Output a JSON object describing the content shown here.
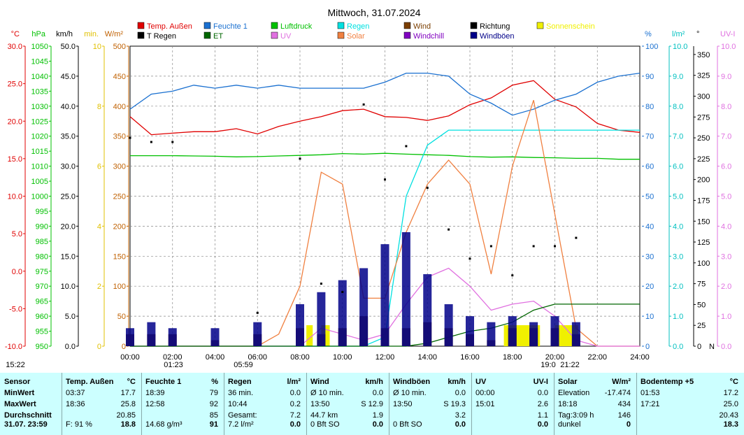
{
  "title": "Mittwoch, 31.07.2024",
  "colors": {
    "temp": "#e00000",
    "feuchte": "#1a70d0",
    "luftdruck": "#00c000",
    "regen": "#00e0e0",
    "wind": "#7a3e00",
    "richtung": "#000000",
    "sonnenschein": "#f0f000",
    "tregen": "#000000",
    "et": "#006600",
    "uv": "#e070e0",
    "solar": "#f08040",
    "windchill": "#8000c0",
    "windboeen": "#000088"
  },
  "legend": [
    {
      "label": "Temp. Außen",
      "color": "#e00000"
    },
    {
      "label": "Feuchte 1",
      "color": "#1a70d0"
    },
    {
      "label": "Luftdruck",
      "color": "#00c000"
    },
    {
      "label": "Regen",
      "color": "#00e0e0"
    },
    {
      "label": "Wind",
      "color": "#7a3e00"
    },
    {
      "label": "Richtung",
      "color": "#000000"
    },
    {
      "label": "Sonnenschein",
      "color": "#f0f000"
    },
    {
      "label": "T Regen",
      "color": "#000000"
    },
    {
      "label": "ET",
      "color": "#006600"
    },
    {
      "label": "UV",
      "color": "#e070e0"
    },
    {
      "label": "Solar",
      "color": "#f08040"
    },
    {
      "label": "Windchill",
      "color": "#8000c0"
    },
    {
      "label": "Windböen",
      "color": "#000088"
    }
  ],
  "axes_left": [
    {
      "unit": "°C",
      "color": "#e00000",
      "ticks": [
        "30.0",
        "25.0",
        "20.0",
        "15.0",
        "10.0",
        "5.0",
        "0.0",
        "-5.0",
        "-10.0"
      ]
    },
    {
      "unit": "hPa",
      "color": "#00c000",
      "ticks": [
        "1050",
        "1045",
        "1040",
        "1035",
        "1030",
        "1025",
        "1020",
        "1015",
        "1010",
        "1005",
        "1000",
        "995",
        "990",
        "985",
        "980",
        "975",
        "970",
        "965",
        "960",
        "955",
        "950"
      ]
    },
    {
      "unit": "km/h",
      "color": "#000000",
      "ticks": [
        "50.0",
        "45.0",
        "40.0",
        "35.0",
        "30.0",
        "25.0",
        "20.0",
        "15.0",
        "10.0",
        "5.0",
        "0.0"
      ]
    },
    {
      "unit": "min.",
      "color": "#e0c000",
      "ticks": [
        "10",
        "8",
        "6",
        "4",
        "2",
        "0"
      ]
    },
    {
      "unit": "W/m²",
      "color": "#c06000",
      "ticks": [
        "500",
        "450",
        "400",
        "350",
        "300",
        "250",
        "200",
        "150",
        "100",
        "50",
        "0"
      ]
    }
  ],
  "axes_right": [
    {
      "unit": "%",
      "color": "#1a70d0",
      "ticks": [
        "100",
        "90",
        "80",
        "70",
        "60",
        "50",
        "40",
        "30",
        "20",
        "10",
        "0"
      ]
    },
    {
      "unit": "l/m²",
      "color": "#00c0c0",
      "ticks": [
        "10.0",
        "9.0",
        "8.0",
        "7.0",
        "6.0",
        "5.0",
        "4.0",
        "3.0",
        "2.0",
        "1.0",
        "0.0"
      ]
    },
    {
      "unit": "°",
      "color": "#000000",
      "ticks": [
        "350",
        "325",
        "300",
        "275",
        "250",
        "225",
        "200",
        "175",
        "150",
        "125",
        "100",
        "75",
        "50",
        "25",
        "0"
      ],
      "extra": "N"
    },
    {
      "unit": "UV-I",
      "color": "#e070e0",
      "ticks": [
        "10.0",
        "9.0",
        "8.0",
        "7.0",
        "6.0",
        "5.0",
        "4.0",
        "3.0",
        "2.0",
        "1.0",
        "0.0"
      ]
    }
  ],
  "x_ticks": [
    "00:00",
    "02:00",
    "04:00",
    "06:00",
    "08:00",
    "10:00",
    "12:00",
    "14:00",
    "16:00",
    "18:00",
    "20:00",
    "22:00",
    "24:00"
  ],
  "x_markers": [
    "15:22",
    "01:23",
    "05:59",
    "19:0",
    "21:22"
  ],
  "chart_data": {
    "type": "line",
    "title": "Mittwoch, 31.07.2024",
    "x_hours": [
      0,
      1,
      2,
      3,
      4,
      5,
      6,
      7,
      8,
      9,
      10,
      11,
      12,
      13,
      14,
      15,
      16,
      17,
      18,
      19,
      20,
      21,
      22,
      23,
      24
    ],
    "series": [
      {
        "name": "Temp. Außen",
        "unit": "°C",
        "values": [
          20.6,
          18.2,
          18.4,
          18.6,
          18.6,
          19.0,
          18.3,
          19.3,
          20.0,
          20.6,
          21.4,
          21.6,
          20.6,
          20.5,
          20.1,
          20.7,
          22.2,
          23.1,
          24.8,
          25.4,
          22.9,
          21.9,
          19.7,
          18.8,
          18.5
        ]
      },
      {
        "name": "Feuchte 1",
        "unit": "%",
        "values": [
          79,
          84,
          85,
          87,
          86,
          87,
          86,
          87,
          86,
          86,
          86,
          86,
          88,
          91,
          91,
          90,
          84,
          81,
          77,
          79,
          82,
          84,
          88,
          90,
          91
        ]
      },
      {
        "name": "Luftdruck",
        "unit": "hPa",
        "values": [
          1013.5,
          1013.5,
          1013.5,
          1013.4,
          1013.3,
          1013.1,
          1013.2,
          1013.4,
          1013.6,
          1013.8,
          1014.2,
          1014.0,
          1014.3,
          1014.0,
          1013.8,
          1013.6,
          1013.2,
          1013.0,
          1013.1,
          1012.9,
          1012.8,
          1012.6,
          1012.6,
          1012.3,
          1012.3
        ]
      },
      {
        "name": "Regen",
        "unit": "l/m²",
        "values": [
          0,
          0,
          0,
          0,
          0,
          0,
          0,
          0,
          0,
          0,
          0,
          0,
          0.3,
          5.0,
          6.7,
          7.2,
          7.2,
          7.2,
          7.2,
          7.2,
          7.2,
          7.2,
          7.2,
          7.2,
          7.2
        ]
      },
      {
        "name": "Solar",
        "unit": "W/m²",
        "values": [
          0,
          0,
          0,
          0,
          0,
          0,
          0,
          20,
          100,
          290,
          270,
          80,
          80,
          190,
          270,
          310,
          270,
          120,
          300,
          410,
          220,
          30,
          0,
          0,
          0
        ]
      },
      {
        "name": "UV",
        "unit": "UV-I",
        "values": [
          0,
          0,
          0,
          0,
          0,
          0,
          0,
          0,
          0,
          0.6,
          0.4,
          0.2,
          0.4,
          1.4,
          2.3,
          2.6,
          2.0,
          1.2,
          1.4,
          1.5,
          1.0,
          0.2,
          0,
          0,
          0
        ]
      },
      {
        "name": "ET",
        "unit": "l/m²",
        "values": [
          0,
          0,
          0,
          0,
          0,
          0,
          0,
          0,
          0,
          0,
          0,
          0,
          0,
          0,
          0.1,
          0.3,
          0.5,
          0.6,
          0.8,
          1.2,
          1.4,
          1.4,
          1.4,
          1.4,
          1.4
        ]
      },
      {
        "name": "Wind",
        "unit": "km/h",
        "values": [
          2,
          2,
          2,
          0,
          1,
          0,
          2,
          0,
          3,
          2,
          3,
          5,
          3,
          3,
          4,
          3,
          2,
          1,
          3,
          3,
          3,
          2,
          0,
          0,
          0
        ]
      },
      {
        "name": "Windböen",
        "unit": "km/h",
        "values": [
          3,
          4,
          3,
          0,
          3,
          0,
          4,
          0,
          7,
          9,
          11,
          13,
          17,
          19,
          12,
          7,
          5,
          4,
          5,
          4,
          5,
          4,
          0,
          0,
          0
        ]
      },
      {
        "name": "Richtung",
        "unit": "°",
        "values": [
          250,
          245,
          245,
          0,
          0,
          0,
          40,
          0,
          225,
          75,
          65,
          290,
          200,
          240,
          190,
          140,
          105,
          120,
          85,
          120,
          120,
          130,
          0,
          0,
          0
        ]
      }
    ],
    "ylim_temp": [
      -10,
      30
    ],
    "ylim_press": [
      950,
      1050
    ],
    "ylim_wind": [
      0,
      50
    ],
    "ylim_solar": [
      0,
      500
    ],
    "ylim_pct": [
      0,
      100
    ],
    "ylim_rain": [
      0,
      10
    ],
    "ylim_dir": [
      0,
      360
    ],
    "ylim_uv": [
      0,
      10
    ]
  },
  "panel": {
    "sensor": {
      "header": "Sensor",
      "rows": [
        "MinWert",
        "MaxWert",
        "Durchschnitt",
        "31.07. 23:59"
      ]
    },
    "temp": {
      "header": "Temp. Außen",
      "unit": "°C",
      "rows": [
        [
          "03:37",
          "17.7"
        ],
        [
          "18:36",
          "25.8"
        ],
        [
          "",
          "20.85"
        ],
        [
          "F: 91 %",
          "18.8"
        ]
      ]
    },
    "feuchte": {
      "header": "Feuchte 1",
      "unit": "%",
      "rows": [
        [
          "18:39",
          "79"
        ],
        [
          "12:58",
          "92"
        ],
        [
          "",
          "85"
        ],
        [
          "14.68 g/m³",
          "91"
        ]
      ]
    },
    "regen": {
      "header": "Regen",
      "unit": "l/m²",
      "rows": [
        [
          "36 min.",
          "0.0"
        ],
        [
          "10:44",
          "0.2"
        ],
        [
          "Gesamt:",
          "7.2"
        ],
        [
          "7.2 l/m²",
          "0.0"
        ]
      ]
    },
    "wind": {
      "header": "Wind",
      "unit": "km/h",
      "rows": [
        [
          "Ø 10 min.",
          "0.0"
        ],
        [
          "13:50",
          "S 12.9"
        ],
        [
          "44.7 km",
          "1.9"
        ],
        [
          "0 Bft SO",
          "0.0"
        ]
      ]
    },
    "boeen": {
      "header": "Windböen",
      "unit": "km/h",
      "rows": [
        [
          "Ø 10 min.",
          "0.0"
        ],
        [
          "13:50",
          "S 19.3"
        ],
        [
          "",
          "3.2"
        ],
        [
          "0 Bft SO",
          "0.0"
        ]
      ]
    },
    "uv": {
      "header": "UV",
      "unit": "UV-I",
      "rows": [
        [
          "00:00",
          "0.0"
        ],
        [
          "15:01",
          "2.6"
        ],
        [
          "",
          "1.1"
        ],
        [
          "",
          "0.0"
        ]
      ]
    },
    "solar": {
      "header": "Solar",
      "unit": "W/m²",
      "rows": [
        [
          "Elevation",
          "-17.474"
        ],
        [
          "18:18",
          "434"
        ],
        [
          "Tag:3:09 h",
          "146"
        ],
        [
          "dunkel",
          "0"
        ]
      ]
    },
    "boden": {
      "header": "Bodentemp +5",
      "unit": "°C",
      "rows": [
        [
          "01:53",
          "17.2"
        ],
        [
          "17:21",
          "25.0"
        ],
        [
          "",
          "20.43"
        ],
        [
          "",
          "18.3"
        ]
      ]
    }
  }
}
